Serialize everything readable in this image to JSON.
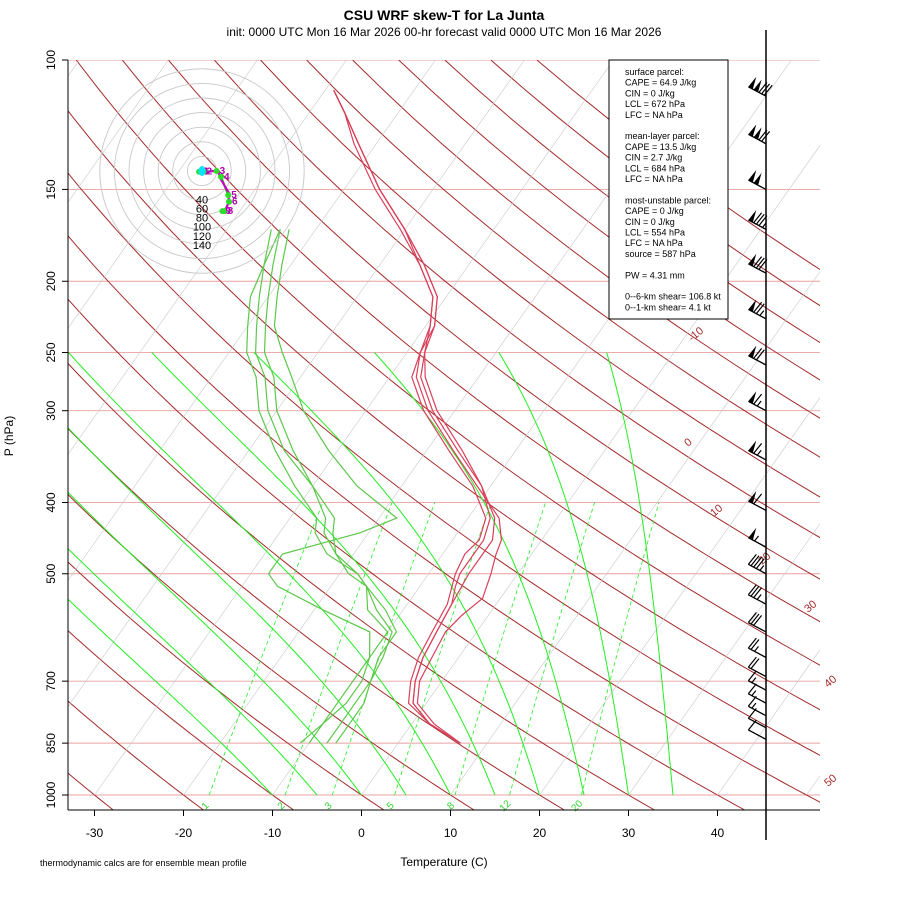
{
  "title": "CSU WRF skew-T for La Junta",
  "subtitle": "init: 0000 UTC Mon 16 Mar 2026     00-hr forecast valid 0000 UTC Mon 16 Mar 2026",
  "footnote": "thermodynamic calcs are for ensemble mean profile",
  "colors": {
    "temperature": "#d9405a",
    "dewpoint": "#5cc84a",
    "isotherm": "#a52a2a",
    "isobar": "#e8a0a0",
    "moist_adiabat": "#22ee22",
    "mixing_ratio": "#22ee22",
    "hodograph_wind": "#cc00cc",
    "hodograph_surface": "#00e5ff"
  },
  "stats_box": {
    "lines": [
      "surface parcel:",
      "CAPE = 64.9 J/kg",
      "CIN = 0 J/kg",
      "LCL = 672 hPa",
      "LFC = NA hPa",
      "",
      "mean-layer parcel:",
      "CAPE = 13.5 J/kg",
      "CIN = 2.7 J/kg",
      "LCL = 684 hPa",
      "LFC = NA hPa",
      "",
      "most-unstable parcel:",
      "CAPE = 0 J/kg",
      "CIN = 0 J/kg",
      "LCL = 554 hPa",
      "LFC = NA hPa",
      "source = 587 hPa",
      "",
      "PW =  4.31 mm",
      "",
      "0--6-km shear= 106.8 kt",
      "0--1-km shear= 4.1 kt"
    ]
  },
  "chart_data": {
    "type": "line",
    "title": "CSU WRF skew-T for La Junta",
    "xlabel": "Temperature (C)",
    "ylabel": "P (hPa)",
    "x_ticks": [
      -30,
      -20,
      -10,
      0,
      10,
      20,
      30,
      40
    ],
    "y_ticks": [
      1000,
      850,
      700,
      500,
      400,
      300,
      250,
      200,
      150,
      100
    ],
    "y_scale": "log",
    "skewed_isotherm_labels": [
      -10,
      0,
      10,
      20,
      30,
      40,
      50
    ],
    "mixing_ratio_labels": [
      "1",
      "2",
      "3",
      "5",
      "8",
      "12",
      "20"
    ],
    "series": [
      {
        "type": "temperature",
        "members": [
          [
            [
              850,
              7
            ],
            [
              800,
              2
            ],
            [
              750,
              -1.5
            ],
            [
              700,
              -3
            ],
            [
              650,
              -4
            ],
            [
              600,
              -4.5
            ],
            [
              550,
              -5
            ],
            [
              520,
              -6
            ],
            [
              500,
              -6.5
            ],
            [
              470,
              -6.5
            ],
            [
              450,
              -6.5
            ],
            [
              420,
              -7.5
            ],
            [
              380,
              -11
            ],
            [
              340,
              -16
            ],
            [
              300,
              -22
            ],
            [
              270,
              -26
            ],
            [
              250,
              -28
            ],
            [
              230,
              -29
            ],
            [
              210,
              -31
            ],
            [
              190,
              -35
            ],
            [
              170,
              -40
            ],
            [
              150,
              -46
            ],
            [
              130,
              -52
            ],
            [
              118,
              -56
            ],
            [
              110,
              -59
            ]
          ],
          [
            [
              850,
              7
            ],
            [
              800,
              2.5
            ],
            [
              750,
              -1
            ],
            [
              700,
              -2.5
            ],
            [
              650,
              -3
            ],
            [
              600,
              -3.5
            ],
            [
              570,
              -3
            ],
            [
              540,
              -2
            ],
            [
              500,
              -3
            ],
            [
              470,
              -4
            ],
            [
              450,
              -4.5
            ],
            [
              420,
              -6.5
            ],
            [
              380,
              -11.5
            ],
            [
              340,
              -17
            ],
            [
              300,
              -23
            ],
            [
              270,
              -27
            ],
            [
              250,
              -28.5
            ],
            [
              230,
              -29.5
            ],
            [
              210,
              -31.5
            ],
            [
              190,
              -35.5
            ],
            [
              170,
              -40.5
            ],
            [
              150,
              -46.5
            ],
            [
              130,
              -52.5
            ],
            [
              118,
              -56
            ],
            [
              110,
              -59
            ]
          ],
          [
            [
              850,
              7
            ],
            [
              800,
              2
            ],
            [
              750,
              -2
            ],
            [
              700,
              -3.5
            ],
            [
              650,
              -4.5
            ],
            [
              600,
              -5
            ],
            [
              550,
              -5.5
            ],
            [
              500,
              -7
            ],
            [
              470,
              -7.5
            ],
            [
              450,
              -7
            ],
            [
              420,
              -8
            ],
            [
              380,
              -12
            ],
            [
              340,
              -17.5
            ],
            [
              300,
              -23.5
            ],
            [
              270,
              -27.5
            ],
            [
              250,
              -28.5
            ],
            [
              230,
              -29
            ],
            [
              210,
              -31
            ],
            [
              190,
              -35
            ],
            [
              170,
              -40
            ],
            [
              150,
              -46
            ],
            [
              130,
              -52
            ],
            [
              118,
              -56
            ],
            [
              110,
              -59
            ]
          ],
          [
            [
              850,
              7
            ],
            [
              800,
              2
            ],
            [
              750,
              -1.5
            ],
            [
              700,
              -3
            ],
            [
              650,
              -4
            ],
            [
              600,
              -4.5
            ],
            [
              550,
              -5
            ],
            [
              500,
              -5.5
            ],
            [
              470,
              -5.5
            ],
            [
              450,
              -5.5
            ],
            [
              420,
              -7
            ],
            [
              380,
              -11
            ],
            [
              340,
              -16.5
            ],
            [
              300,
              -22.5
            ],
            [
              270,
              -26.5
            ],
            [
              250,
              -28
            ],
            [
              230,
              -29.5
            ],
            [
              210,
              -31.5
            ],
            [
              190,
              -35.5
            ],
            [
              170,
              -40
            ],
            [
              150,
              -46
            ],
            [
              130,
              -52
            ],
            [
              118,
              -56
            ],
            [
              110,
              -59
            ]
          ]
        ]
      },
      {
        "type": "dewpoint",
        "members": [
          [
            [
              850,
              -7
            ],
            [
              800,
              -7
            ],
            [
              750,
              -7
            ],
            [
              700,
              -8
            ],
            [
              650,
              -9
            ],
            [
              600,
              -9
            ],
            [
              560,
              -12
            ],
            [
              520,
              -16
            ],
            [
              500,
              -19
            ],
            [
              470,
              -22
            ],
            [
              440,
              -24
            ],
            [
              420,
              -25
            ],
            [
              380,
              -30
            ],
            [
              340,
              -35
            ],
            [
              300,
              -40
            ],
            [
              270,
              -43
            ],
            [
              250,
              -46
            ],
            [
              230,
              -48
            ],
            [
              210,
              -50
            ],
            [
              190,
              -52
            ],
            [
              170,
              -54
            ]
          ],
          [
            [
              850,
              -8
            ],
            [
              800,
              -8
            ],
            [
              750,
              -8
            ],
            [
              700,
              -8
            ],
            [
              650,
              -8.5
            ],
            [
              600,
              -9.5
            ],
            [
              560,
              -13
            ],
            [
              520,
              -16
            ],
            [
              500,
              -18
            ],
            [
              470,
              -22
            ],
            [
              440,
              -25
            ],
            [
              420,
              -26
            ],
            [
              380,
              -30
            ],
            [
              340,
              -36
            ],
            [
              300,
              -41
            ],
            [
              270,
              -44
            ],
            [
              250,
              -47
            ],
            [
              230,
              -49
            ],
            [
              210,
              -51
            ],
            [
              190,
              -53
            ],
            [
              170,
              -54
            ]
          ],
          [
            [
              850,
              -10
            ],
            [
              800,
              -10
            ],
            [
              750,
              -9
            ],
            [
              700,
              -9
            ],
            [
              650,
              -10
            ],
            [
              600,
              -10
            ],
            [
              560,
              -14
            ],
            [
              520,
              -16
            ],
            [
              500,
              -18
            ],
            [
              470,
              -23
            ],
            [
              440,
              -26
            ],
            [
              420,
              -27
            ],
            [
              380,
              -32
            ],
            [
              340,
              -37
            ],
            [
              300,
              -42
            ],
            [
              270,
              -45
            ],
            [
              250,
              -48
            ],
            [
              230,
              -50
            ],
            [
              210,
              -52
            ],
            [
              190,
              -53
            ],
            [
              170,
              -55
            ]
          ],
          [
            [
              850,
              -11
            ],
            [
              800,
              -10
            ],
            [
              750,
              -10
            ],
            [
              700,
              -10
            ],
            [
              650,
              -10
            ],
            [
              600,
              -12
            ],
            [
              560,
              -19
            ],
            [
              520,
              -26
            ],
            [
              500,
              -28
            ],
            [
              470,
              -28
            ],
            [
              440,
              -21
            ],
            [
              420,
              -18
            ],
            [
              380,
              -25
            ],
            [
              340,
              -31
            ],
            [
              300,
              -37
            ],
            [
              270,
              -41
            ],
            [
              250,
              -44
            ],
            [
              230,
              -47
            ],
            [
              210,
              -49
            ],
            [
              190,
              -51
            ],
            [
              170,
              -53
            ]
          ]
        ]
      }
    ],
    "hodograph": {
      "rings": [
        20,
        40,
        60,
        80,
        100,
        120,
        140
      ],
      "ring_labels": [
        "40",
        "60",
        "80",
        "100",
        "120",
        "140"
      ],
      "surface": [
        0,
        0
      ],
      "points": [
        {
          "label": "0",
          "u": -4,
          "v": -1
        },
        {
          "label": "1",
          "u": -2,
          "v": -1
        },
        {
          "label": "2",
          "u": 2,
          "v": -1
        },
        {
          "label": "3",
          "u": 20,
          "v": 0
        },
        {
          "label": "4",
          "u": 26,
          "v": -8
        },
        {
          "label": "5",
          "u": 36,
          "v": -33
        },
        {
          "label": "6",
          "u": 37,
          "v": -42
        },
        {
          "label": "8",
          "u": 31,
          "v": -55
        },
        {
          "label": "9",
          "u": 28,
          "v": -55
        }
      ]
    },
    "wind_barbs": [
      {
        "p": 112,
        "kt": 130
      },
      {
        "p": 130,
        "kt": 120
      },
      {
        "p": 150,
        "kt": 100
      },
      {
        "p": 170,
        "kt": 85
      },
      {
        "p": 195,
        "kt": 80
      },
      {
        "p": 225,
        "kt": 75
      },
      {
        "p": 260,
        "kt": 70
      },
      {
        "p": 300,
        "kt": 65
      },
      {
        "p": 350,
        "kt": 65
      },
      {
        "p": 410,
        "kt": 60
      },
      {
        "p": 460,
        "kt": 55
      },
      {
        "p": 500,
        "kt": 45
      },
      {
        "p": 550,
        "kt": 35
      },
      {
        "p": 600,
        "kt": 30
      },
      {
        "p": 650,
        "kt": 25
      },
      {
        "p": 690,
        "kt": 20
      },
      {
        "p": 720,
        "kt": 15
      },
      {
        "p": 750,
        "kt": 15
      },
      {
        "p": 780,
        "kt": 15
      },
      {
        "p": 810,
        "kt": 10
      },
      {
        "p": 840,
        "kt": 10
      }
    ]
  }
}
